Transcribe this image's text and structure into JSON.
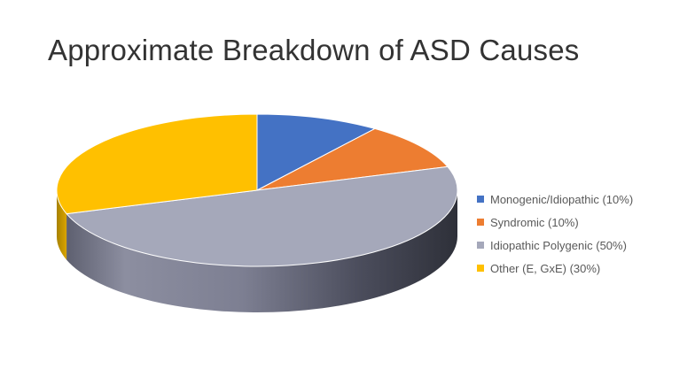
{
  "slide": {
    "title": "Approximate Breakdown of ASD Causes"
  },
  "chart_data": {
    "type": "pie",
    "style": "3d",
    "title": "",
    "legend_position": "right",
    "slices": [
      {
        "label": "Monogenic/Idiopathic (10%)",
        "value": 10,
        "color": "#4472C4"
      },
      {
        "label": "Syndromic (10%)",
        "value": 10,
        "color": "#ED7D31"
      },
      {
        "label": "Idiopathic Polygenic (50%)",
        "value": 50,
        "color": "#A5A8BA"
      },
      {
        "label": "Other (E, GxE) (30%)",
        "value": 30,
        "color": "#FFC000"
      }
    ]
  }
}
